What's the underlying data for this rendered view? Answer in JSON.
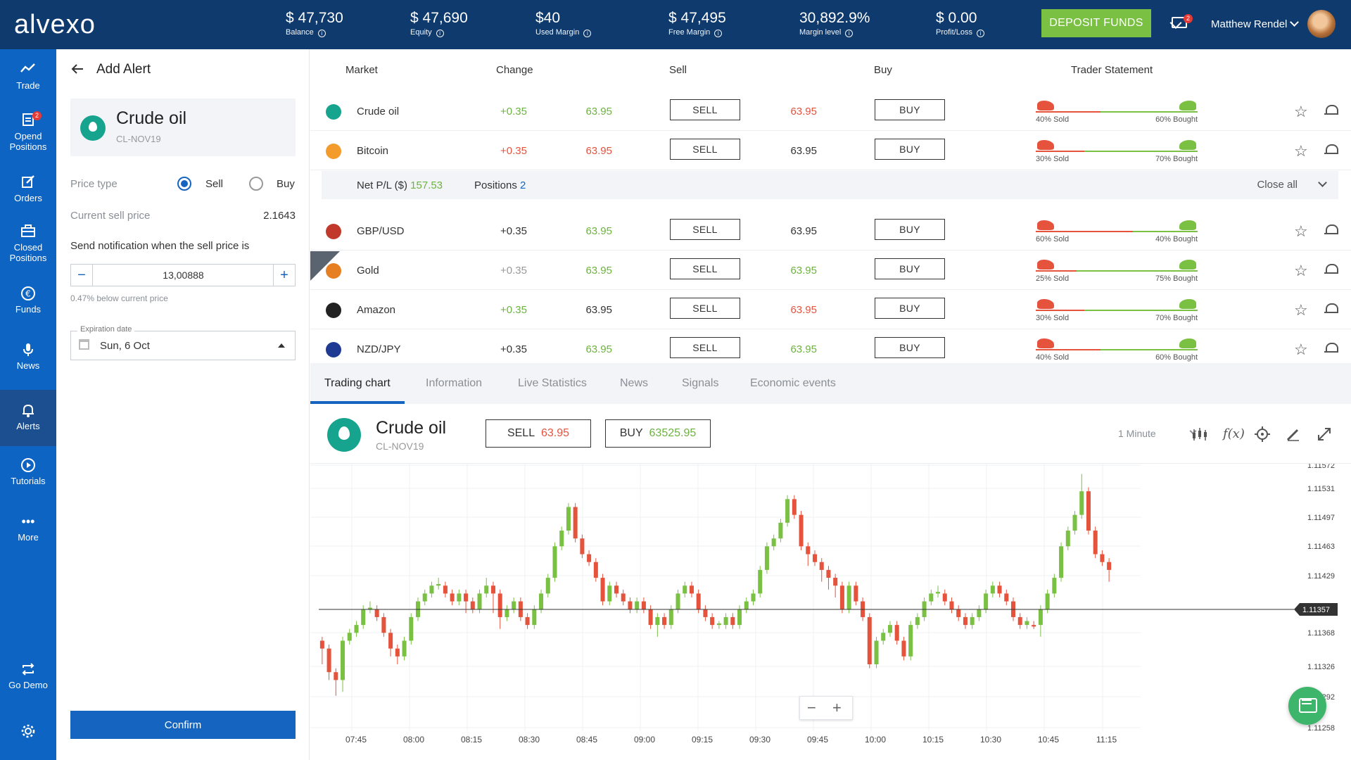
{
  "brand": {
    "logo": "alvexo"
  },
  "topbar": {
    "stats": [
      {
        "value": "$ 47,730",
        "label": "Balance"
      },
      {
        "value": "$ 47,690",
        "label": "Equity"
      },
      {
        "value": "$40",
        "label": "Used Margin"
      },
      {
        "value": "$ 47,495",
        "label": "Free Margin"
      },
      {
        "value": "30,892.9%",
        "label": "Margin level"
      },
      {
        "value": "$ 0.00",
        "label": "Profit/Loss"
      }
    ],
    "deposit_label": "DEPOSIT FUNDS",
    "mail_badge": "2",
    "user_name": "Matthew Rendel"
  },
  "nav": {
    "items": [
      {
        "label1": "Trade",
        "label2": ""
      },
      {
        "label1": "Opend",
        "label2": "Positions",
        "badge": "2"
      },
      {
        "label1": "Orders",
        "label2": ""
      },
      {
        "label1": "Closed",
        "label2": "Positions"
      },
      {
        "label1": "Funds",
        "label2": ""
      },
      {
        "label1": "News",
        "label2": ""
      },
      {
        "label1": "Alerts",
        "label2": ""
      },
      {
        "label1": "Tutorials",
        "label2": ""
      },
      {
        "label1": "More",
        "label2": ""
      },
      {
        "label1": "Go Demo",
        "label2": ""
      }
    ]
  },
  "alert": {
    "title": "Add Alert",
    "instrument_name": "Crude oil",
    "instrument_code": "CL-NOV19",
    "price_type_label": "Price type",
    "sell_label": "Sell",
    "buy_label": "Buy",
    "current_sell_label": "Current sell price",
    "current_sell_value": "2.1643",
    "notify_label": "Send notification when the sell price is",
    "notify_value": "13,00888",
    "below_note": "0.47% below current price",
    "expiration_label": "Expiration date",
    "expiration_value": "Sun, 6 Oct",
    "confirm_label": "Confirm"
  },
  "markets": {
    "headers": {
      "market": "Market",
      "change": "Change",
      "sell": "Sell",
      "buy": "Buy",
      "trader": "Trader Statement"
    },
    "sell_btn": "SELL",
    "buy_btn": "BUY",
    "rows": [
      {
        "name": "Crude oil",
        "icon": "drop-icon",
        "icon_color": "#17a48e",
        "change": "+0.35",
        "change_color": "#6cb33f",
        "sell": "63.95",
        "sell_color": "#6cb33f",
        "buy": "63.95",
        "buy_color": "#e5533d",
        "sold": "40% Sold",
        "bought": "60% Bought",
        "sold_frac": 0.4
      },
      {
        "name": "Bitcoin",
        "icon": "bitcoin-icon",
        "icon_color": "#f39c2b",
        "change": "+0.35",
        "change_color": "#e5533d",
        "sell": "63.95",
        "sell_color": "#e5533d",
        "buy": "63.95",
        "buy_color": "#333333",
        "sold": "30% Sold",
        "bought": "70% Bought",
        "sold_frac": 0.3
      },
      {
        "name": "GBP/USD",
        "icon": "uk-us-flag-icon",
        "icon_color": "#c0392b",
        "change": "+0.35",
        "change_color": "#333333",
        "sell": "63.95",
        "sell_color": "#6cb33f",
        "buy": "63.95",
        "buy_color": "#333333",
        "sold": "60% Sold",
        "bought": "40% Bought",
        "sold_frac": 0.6
      },
      {
        "name": "Gold",
        "icon": "gold-bars-icon",
        "icon_color": "#e67e22",
        "change": "+0.35",
        "change_color": "#999999",
        "sell": "63.95",
        "sell_color": "#6cb33f",
        "buy": "63.95",
        "buy_color": "#6cb33f",
        "sold": "25% Sold",
        "bought": "75% Bought",
        "sold_frac": 0.25
      },
      {
        "name": "Amazon",
        "icon": "amazon-icon",
        "icon_color": "#222222",
        "change": "+0.35",
        "change_color": "#6cb33f",
        "sell": "63.95",
        "sell_color": "#333333",
        "buy": "63.95",
        "buy_color": "#e5533d",
        "sold": "30% Sold",
        "bought": "70% Bought",
        "sold_frac": 0.3
      },
      {
        "name": "NZD/JPY",
        "icon": "nz-jp-flag-icon",
        "icon_color": "#1f3a93",
        "change": "+0.35",
        "change_color": "#333333",
        "sell": "63.95",
        "sell_color": "#6cb33f",
        "buy": "63.95",
        "buy_color": "#6cb33f",
        "sold": "40% Sold",
        "bought": "60% Bought",
        "sold_frac": 0.4
      }
    ],
    "pnl": {
      "label": "Net P/L ($)",
      "value": "157.53",
      "positions_label": "Positions",
      "positions_value": "2",
      "close_all": "Close all"
    }
  },
  "tabs": [
    "Trading chart",
    "Information",
    "Live Statistics",
    "News",
    "Signals",
    "Economic events"
  ],
  "chart_header": {
    "name": "Crude oil",
    "code": "CL-NOV19",
    "sell_label": "SELL",
    "sell_value": "63.95",
    "buy_label": "BUY",
    "buy_value": "63525.95",
    "timeframe": "1 Minute"
  },
  "chart_data": {
    "type": "candlestick",
    "x_ticks": [
      "07:45",
      "08:00",
      "08:15",
      "08:30",
      "08:45",
      "09:00",
      "09:15",
      "09:30",
      "09:45",
      "10:00",
      "10:15",
      "10:30",
      "10:45",
      "11:15"
    ],
    "y_ticks": [
      "1.11572",
      "1.11531",
      "1.11497",
      "1.11463",
      "1.11429",
      "1.11368",
      "1.11326",
      "1.11292",
      "1.11258"
    ],
    "current_price": "1.11357",
    "ylim": [
      1.11245,
      1.11585
    ],
    "up_color": "#7ac143",
    "down_color": "#e5533d",
    "candles": [
      [
        1.1136,
        1.1135,
        1.11365,
        1.1133
      ],
      [
        1.1135,
        1.1132,
        1.11355,
        1.1131
      ],
      [
        1.1132,
        1.1131,
        1.11325,
        1.1129
      ],
      [
        1.1131,
        1.1136,
        1.11365,
        1.11295
      ],
      [
        1.1136,
        1.1137,
        1.11375,
        1.11355
      ],
      [
        1.1137,
        1.1138,
        1.11385,
        1.11365
      ],
      [
        1.1138,
        1.114,
        1.11405,
        1.11375
      ],
      [
        1.114,
        1.11402,
        1.1141,
        1.11395
      ],
      [
        1.114,
        1.1139,
        1.11405,
        1.11385
      ],
      [
        1.1139,
        1.1137,
        1.11395,
        1.11365
      ],
      [
        1.1137,
        1.1135,
        1.11375,
        1.1134
      ],
      [
        1.1135,
        1.1134,
        1.11355,
        1.1133
      ],
      [
        1.1134,
        1.1136,
        1.11365,
        1.11335
      ],
      [
        1.1136,
        1.1139,
        1.11395,
        1.11355
      ],
      [
        1.1139,
        1.1141,
        1.11415,
        1.11385
      ],
      [
        1.1141,
        1.1142,
        1.11425,
        1.11405
      ],
      [
        1.1142,
        1.1143,
        1.11435,
        1.11415
      ],
      [
        1.1143,
        1.11432,
        1.1144,
        1.11425
      ],
      [
        1.1143,
        1.1142,
        1.11435,
        1.11415
      ],
      [
        1.1142,
        1.1141,
        1.11425,
        1.11405
      ],
      [
        1.1141,
        1.1142,
        1.11425,
        1.11405
      ],
      [
        1.1142,
        1.1141,
        1.11425,
        1.11395
      ],
      [
        1.1141,
        1.114,
        1.11415,
        1.11395
      ],
      [
        1.114,
        1.1142,
        1.11425,
        1.11395
      ],
      [
        1.1142,
        1.1143,
        1.1144,
        1.11415
      ],
      [
        1.1143,
        1.1142,
        1.11435,
        1.11395
      ],
      [
        1.1142,
        1.1139,
        1.11425,
        1.11375
      ],
      [
        1.1139,
        1.114,
        1.11405,
        1.11385
      ],
      [
        1.114,
        1.1141,
        1.11415,
        1.11395
      ],
      [
        1.1141,
        1.1139,
        1.11415,
        1.11385
      ],
      [
        1.1139,
        1.1138,
        1.11395,
        1.11375
      ],
      [
        1.1138,
        1.114,
        1.11405,
        1.11375
      ],
      [
        1.114,
        1.1142,
        1.11425,
        1.11395
      ],
      [
        1.1142,
        1.1144,
        1.11445,
        1.11415
      ],
      [
        1.1144,
        1.1148,
        1.11485,
        1.11435
      ],
      [
        1.1148,
        1.115,
        1.11505,
        1.11475
      ],
      [
        1.115,
        1.1153,
        1.11535,
        1.11495
      ],
      [
        1.1153,
        1.1149,
        1.11535,
        1.11485
      ],
      [
        1.1149,
        1.1147,
        1.11495,
        1.11465
      ],
      [
        1.1147,
        1.1146,
        1.11475,
        1.11455
      ],
      [
        1.1146,
        1.1144,
        1.11465,
        1.11435
      ],
      [
        1.1144,
        1.1141,
        1.11445,
        1.11405
      ],
      [
        1.1141,
        1.1143,
        1.11435,
        1.11405
      ],
      [
        1.1143,
        1.1142,
        1.11435,
        1.11415
      ],
      [
        1.1142,
        1.1141,
        1.11425,
        1.11405
      ],
      [
        1.1141,
        1.114,
        1.11415,
        1.11395
      ],
      [
        1.114,
        1.1141,
        1.11415,
        1.11395
      ],
      [
        1.1141,
        1.114,
        1.11415,
        1.11395
      ],
      [
        1.114,
        1.1138,
        1.11405,
        1.11375
      ],
      [
        1.1138,
        1.1139,
        1.11395,
        1.11365
      ],
      [
        1.1139,
        1.1138,
        1.11395,
        1.11375
      ],
      [
        1.1138,
        1.114,
        1.11405,
        1.11375
      ],
      [
        1.114,
        1.1142,
        1.11425,
        1.11395
      ],
      [
        1.1142,
        1.1143,
        1.11435,
        1.11415
      ],
      [
        1.1143,
        1.1142,
        1.11435,
        1.11415
      ],
      [
        1.1142,
        1.114,
        1.11425,
        1.11395
      ],
      [
        1.114,
        1.1139,
        1.11405,
        1.11385
      ],
      [
        1.1139,
        1.1138,
        1.11395,
        1.11375
      ],
      [
        1.1138,
        1.11382,
        1.11385,
        1.11375
      ],
      [
        1.1138,
        1.1139,
        1.11395,
        1.11375
      ],
      [
        1.1139,
        1.1138,
        1.11395,
        1.11375
      ],
      [
        1.1138,
        1.114,
        1.11405,
        1.11375
      ],
      [
        1.114,
        1.1141,
        1.11415,
        1.11395
      ],
      [
        1.1141,
        1.1142,
        1.11425,
        1.11405
      ],
      [
        1.1142,
        1.1145,
        1.11455,
        1.11415
      ],
      [
        1.1145,
        1.1148,
        1.11485,
        1.11445
      ],
      [
        1.1148,
        1.1149,
        1.11495,
        1.11475
      ],
      [
        1.1149,
        1.1151,
        1.11515,
        1.11485
      ],
      [
        1.1151,
        1.1154,
        1.11545,
        1.11505
      ],
      [
        1.1154,
        1.1152,
        1.11545,
        1.11515
      ],
      [
        1.1152,
        1.1148,
        1.11525,
        1.11475
      ],
      [
        1.1148,
        1.1147,
        1.11485,
        1.11455
      ],
      [
        1.1147,
        1.1146,
        1.11475,
        1.11455
      ],
      [
        1.1146,
        1.1145,
        1.11465,
        1.11435
      ],
      [
        1.1145,
        1.1144,
        1.11455,
        1.11425
      ],
      [
        1.1144,
        1.1143,
        1.11445,
        1.11415
      ],
      [
        1.1143,
        1.114,
        1.11435,
        1.11395
      ],
      [
        1.114,
        1.1143,
        1.11435,
        1.11395
      ],
      [
        1.1143,
        1.1141,
        1.11435,
        1.11405
      ],
      [
        1.1141,
        1.1139,
        1.11415,
        1.11385
      ],
      [
        1.1139,
        1.1133,
        1.11395,
        1.11325
      ],
      [
        1.1133,
        1.1136,
        1.11365,
        1.11325
      ],
      [
        1.1136,
        1.1137,
        1.11375,
        1.11355
      ],
      [
        1.1137,
        1.1138,
        1.11385,
        1.11365
      ],
      [
        1.1138,
        1.1136,
        1.11385,
        1.11355
      ],
      [
        1.1136,
        1.1134,
        1.11365,
        1.11335
      ],
      [
        1.1134,
        1.1138,
        1.11385,
        1.11335
      ],
      [
        1.1138,
        1.1139,
        1.11395,
        1.11375
      ],
      [
        1.1139,
        1.1141,
        1.11415,
        1.11385
      ],
      [
        1.1141,
        1.1142,
        1.11425,
        1.11405
      ],
      [
        1.1142,
        1.11422,
        1.1143,
        1.11415
      ],
      [
        1.1142,
        1.1141,
        1.11425,
        1.11405
      ],
      [
        1.1141,
        1.114,
        1.11415,
        1.11395
      ],
      [
        1.114,
        1.1139,
        1.11405,
        1.11385
      ],
      [
        1.1139,
        1.1138,
        1.11395,
        1.11375
      ],
      [
        1.1138,
        1.1139,
        1.11395,
        1.11375
      ],
      [
        1.1139,
        1.114,
        1.11405,
        1.11385
      ],
      [
        1.114,
        1.1142,
        1.11425,
        1.11395
      ],
      [
        1.1142,
        1.1143,
        1.11435,
        1.11415
      ],
      [
        1.1143,
        1.1142,
        1.11435,
        1.11415
      ],
      [
        1.1142,
        1.1141,
        1.11425,
        1.11405
      ],
      [
        1.1141,
        1.1139,
        1.11415,
        1.11385
      ],
      [
        1.1139,
        1.1138,
        1.11395,
        1.11375
      ],
      [
        1.1138,
        1.11385,
        1.1139,
        1.11375
      ],
      [
        1.1138,
        1.11378,
        1.11385,
        1.11375
      ],
      [
        1.1138,
        1.114,
        1.11405,
        1.11365
      ],
      [
        1.114,
        1.1142,
        1.11425,
        1.11395
      ],
      [
        1.1142,
        1.1144,
        1.11445,
        1.11415
      ],
      [
        1.1144,
        1.1148,
        1.11485,
        1.11435
      ],
      [
        1.1148,
        1.115,
        1.11505,
        1.11475
      ],
      [
        1.115,
        1.1152,
        1.11525,
        1.11495
      ],
      [
        1.1152,
        1.1155,
        1.11572,
        1.11515
      ],
      [
        1.1155,
        1.115,
        1.11555,
        1.11495
      ],
      [
        1.115,
        1.1147,
        1.11505,
        1.11465
      ],
      [
        1.1147,
        1.1146,
        1.11475,
        1.11455
      ],
      [
        1.1146,
        1.1145,
        1.11465,
        1.11435
      ]
    ]
  }
}
